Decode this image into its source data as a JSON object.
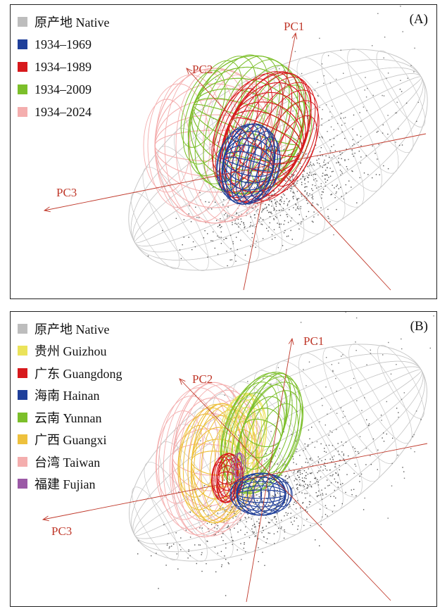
{
  "panels": [
    {
      "label": "(A)",
      "axes": [
        "PC1",
        "PC2",
        "PC3"
      ],
      "legend": [
        {
          "label": "原产地 Native",
          "color": "#bdbdbd"
        },
        {
          "label": "1934–1969",
          "color": "#1f3f9a"
        },
        {
          "label": "1934–1989",
          "color": "#d7191c"
        },
        {
          "label": "1934–2009",
          "color": "#7cbf2a"
        },
        {
          "label": "1934–2024",
          "color": "#f4aeae"
        }
      ]
    },
    {
      "label": "(B)",
      "axes": [
        "PC1",
        "PC2",
        "PC3"
      ],
      "legend": [
        {
          "label": "原产地 Native",
          "color": "#bdbdbd"
        },
        {
          "label": "贵州 Guizhou",
          "color": "#ebe35a"
        },
        {
          "label": "广东 Guangdong",
          "color": "#d7191c"
        },
        {
          "label": "海南 Hainan",
          "color": "#1f3f9a"
        },
        {
          "label": "云南 Yunnan",
          "color": "#7cbf2a"
        },
        {
          "label": "广西 Guangxi",
          "color": "#eec13d"
        },
        {
          "label": "台湾 Taiwan",
          "color": "#f4aeae"
        },
        {
          "label": "福建 Fujian",
          "color": "#9b59a6"
        }
      ]
    }
  ],
  "colors": {
    "axis": "#c0392b",
    "native": "#bdbdbd"
  }
}
